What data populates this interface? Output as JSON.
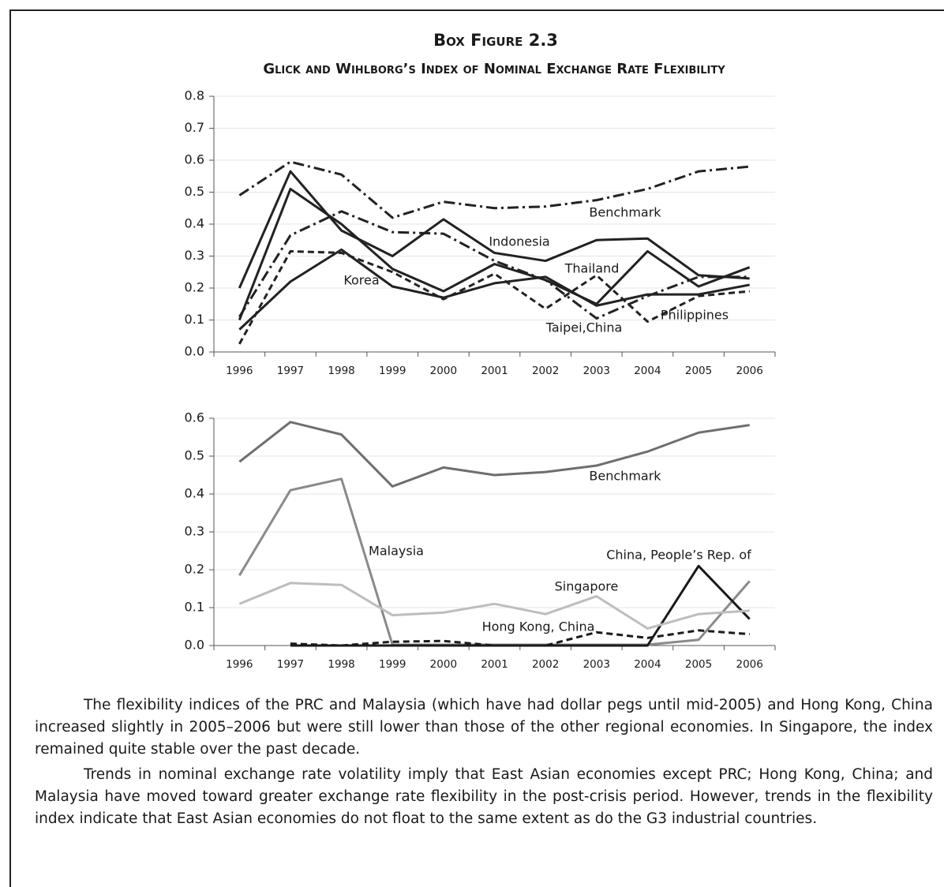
{
  "box_title": "Box Figure 2.3",
  "box_subtitle": "Glick and Wihlborg’s Index of Nominal Exchange Rate Flexibility",
  "chart_data": [
    {
      "type": "line",
      "categories": [
        "1996",
        "1997",
        "1998",
        "1999",
        "2000",
        "2001",
        "2002",
        "2003",
        "2004",
        "2005",
        "2006"
      ],
      "ylim": [
        0,
        0.8
      ],
      "yticks": [
        {
          "value": 0,
          "label": "0.0"
        },
        0.1,
        0.2,
        0.3,
        0.4,
        0.5,
        0.6,
        0.7,
        0.8
      ],
      "grid": true,
      "series": [
        {
          "name": "Benchmark",
          "color": "#222222",
          "dash": "14,5,3,5",
          "values": [
            0.49,
            0.595,
            0.555,
            0.42,
            0.47,
            0.45,
            0.455,
            0.475,
            0.51,
            0.565,
            0.58
          ]
        },
        {
          "name": "Indonesia",
          "color": "#222222",
          "values": [
            0.2,
            0.565,
            0.38,
            0.3,
            0.415,
            0.31,
            0.285,
            0.35,
            0.355,
            0.24,
            0.23
          ]
        },
        {
          "name": "Thailand",
          "color": "#222222",
          "values": [
            0.1,
            0.51,
            0.4,
            0.26,
            0.19,
            0.275,
            0.225,
            0.15,
            0.315,
            0.205,
            0.265
          ]
        },
        {
          "name": "Korea",
          "color": "#222222",
          "values": [
            0.07,
            0.22,
            0.32,
            0.205,
            0.17,
            0.215,
            0.235,
            0.145,
            0.18,
            0.18,
            0.21
          ]
        },
        {
          "name": "Taipei,China",
          "color": "#222222",
          "dash": "14,5,3,5",
          "values": [
            0.11,
            0.365,
            0.44,
            0.375,
            0.37,
            0.285,
            0.225,
            0.105,
            0.175,
            0.235,
            0.235
          ]
        },
        {
          "name": "Philippines",
          "color": "#222222",
          "dash": "8,5",
          "values": [
            0.025,
            0.315,
            0.31,
            0.25,
            0.165,
            0.245,
            0.135,
            0.24,
            0.095,
            0.175,
            0.19
          ]
        }
      ]
    },
    {
      "type": "line",
      "categories": [
        "1996",
        "1997",
        "1998",
        "1999",
        "2000",
        "2001",
        "2002",
        "2003",
        "2004",
        "2005",
        "2006"
      ],
      "ylim": [
        0,
        0.6
      ],
      "yticks": [
        {
          "value": 0,
          "label": "0.0"
        },
        0.1,
        0.2,
        0.3,
        0.4,
        0.5,
        0.6
      ],
      "grid": true,
      "series": [
        {
          "name": "Benchmark",
          "color": "#6e6e6e",
          "values": [
            0.485,
            0.59,
            0.557,
            0.42,
            0.47,
            0.45,
            0.458,
            0.475,
            0.512,
            0.562,
            0.582
          ]
        },
        {
          "name": "Malaysia",
          "color": "#8a8a8a",
          "values": [
            0.185,
            0.41,
            0.44,
            0.002,
            0.002,
            0.002,
            0.002,
            0.002,
            0.002,
            0.015,
            0.17
          ]
        },
        {
          "name": "China, People’s Rep. of",
          "color": "#1a1a1a",
          "values": [
            null,
            0,
            0,
            0,
            0,
            0,
            0,
            0,
            0,
            0.21,
            0.07
          ]
        },
        {
          "name": "Singapore",
          "color": "#bdbdbd",
          "values": [
            0.11,
            0.165,
            0.16,
            0.08,
            0.087,
            0.11,
            0.083,
            0.13,
            0.045,
            0.083,
            0.092
          ]
        },
        {
          "name": "Hong Kong, China",
          "color": "#1a1a1a",
          "dash": "8,5",
          "values": [
            null,
            0.005,
            0,
            0.01,
            0.012,
            0,
            0,
            0.035,
            0.02,
            0.04,
            0.03
          ]
        }
      ]
    }
  ],
  "paragraphs": [
    "The flexibility indices of the PRC and Malaysia (which have had dollar pegs until mid-2005) and Hong Kong, China increased slightly in 2005–2006 but were still lower than those of the other regional economies. In Singapore, the index remained quite stable over the past decade.",
    "Trends in nominal exchange rate volatility imply that East Asian economies except PRC; Hong Kong, China; and Malaysia have moved toward greater exchange rate flexibility in the post-crisis period. However, trends in the flexibility index indicate that East Asian economies do not float to the same extent as do the G3 industrial countries."
  ]
}
